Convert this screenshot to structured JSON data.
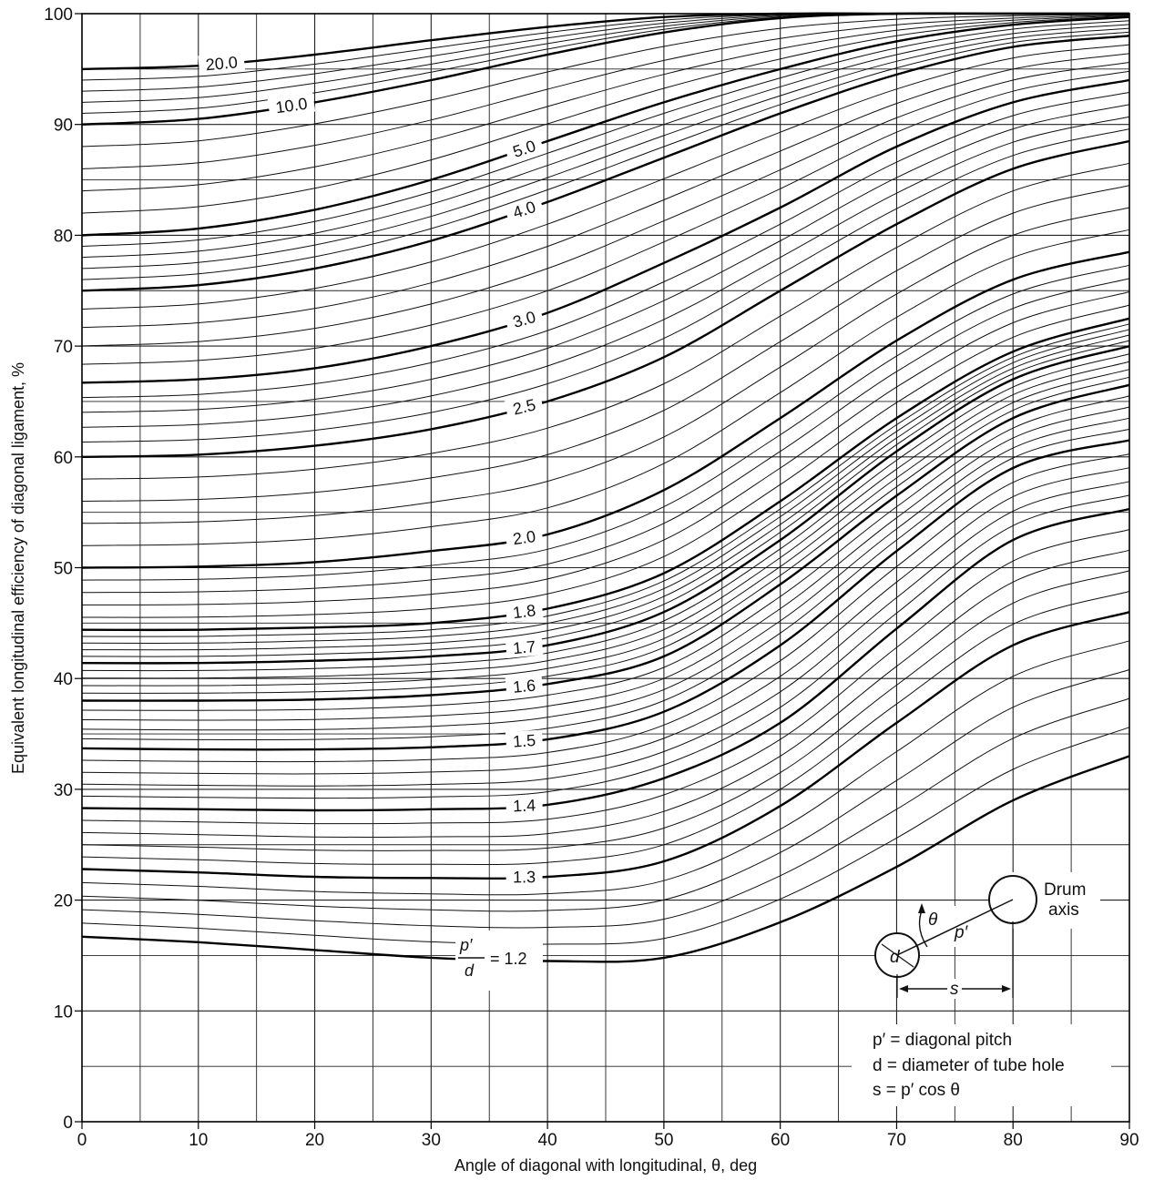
{
  "chart_data": {
    "type": "line",
    "xlabel": "Angle of diagonal with longitudinal, θ, deg",
    "ylabel": "Equivalent longitudinal efficiency of diagonal ligament, %",
    "xlim": [
      0,
      90
    ],
    "ylim": [
      0,
      100
    ],
    "x_ticks": [
      "0",
      "10",
      "20",
      "30",
      "40",
      "50",
      "60",
      "70",
      "80",
      "90"
    ],
    "y_ticks": [
      "0",
      "10",
      "20",
      "30",
      "40",
      "50",
      "60",
      "70",
      "80",
      "90",
      "100"
    ],
    "grid": true,
    "x": [
      0,
      10,
      20,
      30,
      40,
      50,
      60,
      70,
      80,
      90
    ],
    "series": [
      {
        "name": "1.2",
        "values": [
          16.7,
          16.2,
          15.5,
          14.8,
          14.5,
          14.8,
          18.0,
          23.0,
          29.0,
          33.0
        ]
      },
      {
        "name": "1.3",
        "values": [
          22.8,
          22.5,
          22.1,
          22.0,
          22.1,
          23.5,
          28.5,
          36.0,
          43.0,
          46.0
        ]
      },
      {
        "name": "1.4",
        "values": [
          28.3,
          28.2,
          28.1,
          28.2,
          28.6,
          31.0,
          36.0,
          44.5,
          52.5,
          55.3
        ]
      },
      {
        "name": "1.5",
        "values": [
          33.7,
          33.6,
          33.6,
          33.8,
          34.5,
          37.0,
          43.0,
          51.5,
          59.0,
          61.5
        ]
      },
      {
        "name": "1.6",
        "values": [
          38.0,
          38.0,
          38.1,
          38.5,
          39.5,
          42.0,
          48.5,
          56.5,
          63.5,
          66.5
        ]
      },
      {
        "name": "1.7",
        "values": [
          41.4,
          41.4,
          41.6,
          42.0,
          43.0,
          46.0,
          52.5,
          60.5,
          67.0,
          70.0
        ]
      },
      {
        "name": "1.8",
        "values": [
          44.4,
          44.4,
          44.6,
          45.0,
          46.3,
          49.5,
          56.0,
          63.5,
          69.5,
          72.5
        ]
      },
      {
        "name": "2.0",
        "values": [
          50.0,
          50.1,
          50.5,
          51.5,
          53.0,
          57.0,
          63.5,
          70.5,
          76.0,
          78.5
        ]
      },
      {
        "name": "2.5",
        "values": [
          60.0,
          60.2,
          61.0,
          62.5,
          65.0,
          69.0,
          75.0,
          81.0,
          86.0,
          88.5
        ]
      },
      {
        "name": "3.0",
        "values": [
          66.7,
          67.0,
          68.0,
          70.0,
          73.0,
          77.5,
          82.5,
          88.0,
          92.0,
          94.0
        ]
      },
      {
        "name": "4.0",
        "values": [
          75.0,
          75.5,
          77.0,
          79.5,
          83.0,
          87.0,
          91.0,
          94.5,
          97.0,
          98.0
        ]
      },
      {
        "name": "5.0",
        "values": [
          80.0,
          80.6,
          82.3,
          85.0,
          88.5,
          92.0,
          95.0,
          97.5,
          99.0,
          99.7
        ]
      },
      {
        "name": "10.0",
        "values": [
          90.0,
          90.5,
          92.0,
          94.0,
          96.3,
          98.3,
          99.6,
          100,
          100,
          100
        ]
      },
      {
        "name": "20.0",
        "values": [
          95.0,
          95.3,
          96.3,
          97.6,
          98.8,
          99.7,
          100,
          100,
          100,
          100
        ]
      }
    ],
    "annotations": [
      "p′",
      "d",
      "= 1.2"
    ]
  },
  "inset": {
    "drum_label_1": "Drum",
    "drum_label_2": "axis",
    "theta": "θ",
    "p_prime": "p′",
    "d": "d",
    "s": "s",
    "legend": [
      "p′ = diagonal pitch",
      "d = diameter of tube hole",
      "s = p′ cos θ"
    ]
  }
}
